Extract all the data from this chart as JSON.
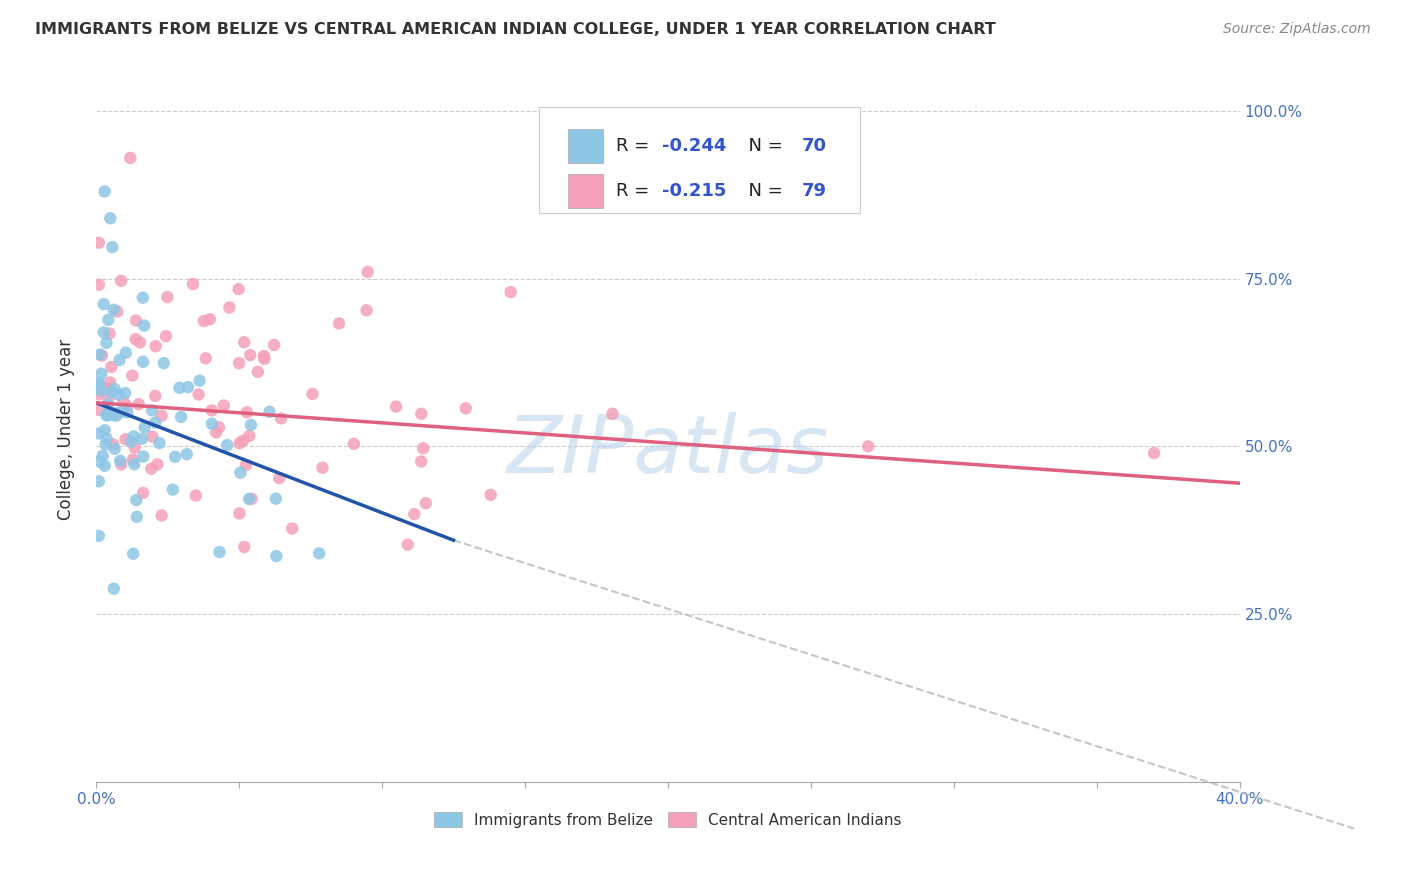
{
  "title": "IMMIGRANTS FROM BELIZE VS CENTRAL AMERICAN INDIAN COLLEGE, UNDER 1 YEAR CORRELATION CHART",
  "source": "Source: ZipAtlas.com",
  "ylabel": "College, Under 1 year",
  "xlim": [
    0.0,
    0.4
  ],
  "ylim": [
    0.0,
    1.05
  ],
  "color_blue": "#8ec6e6",
  "color_pink": "#f4a0b8",
  "line_color_blue": "#2255aa",
  "line_color_pink": "#e06080",
  "line_color_dashed": "#bbbbbb",
  "watermark": "ZIPatlas",
  "blue_line_x": [
    0.0,
    0.125
  ],
  "blue_line_y": [
    0.565,
    0.36
  ],
  "pink_line_x": [
    0.0,
    0.4
  ],
  "pink_line_y": [
    0.565,
    0.445
  ],
  "dashed_line_x": [
    0.125,
    0.44
  ],
  "dashed_line_y": [
    0.36,
    -0.07
  ]
}
